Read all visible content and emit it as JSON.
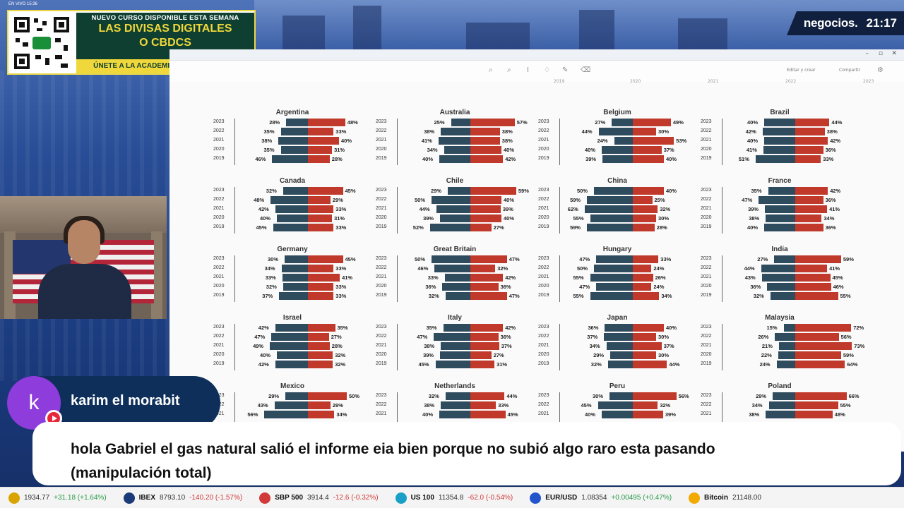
{
  "overlay": {
    "live_label": "EN VIVO 15:36",
    "brand": "negocios.",
    "clock": "21:17",
    "promo": {
      "line1": "NUEVO CURSO DISPONIBLE ESTA SEMANA",
      "line2": "LAS DIVISAS DIGITALES",
      "line3": "O CBDCS",
      "cta": "ÚNETE A LA ACADEMIA DE NEGOCIOS TV"
    }
  },
  "screen": {
    "toolbar": {
      "share": "Editar y crear",
      "export": "Compartir"
    },
    "year_headers": [
      "2019",
      "2020",
      "2021",
      "2022",
      "2023"
    ]
  },
  "chart_data": {
    "type": "bar",
    "subtype": "diverging",
    "colors": {
      "left": "#2f4b5e",
      "right": "#c0392b"
    },
    "years": [
      "2023",
      "2022",
      "2021",
      "2020",
      "2019"
    ],
    "panels": [
      {
        "country": "Argentina",
        "left": [
          "28%",
          "35%",
          "38%",
          "35%",
          "46%"
        ],
        "right": [
          "48%",
          "33%",
          "40%",
          "31%",
          "28%"
        ]
      },
      {
        "country": "Australia",
        "left": [
          "25%",
          "38%",
          "41%",
          "34%",
          "40%"
        ],
        "right": [
          "57%",
          "38%",
          "38%",
          "40%",
          "42%"
        ]
      },
      {
        "country": "Belgium",
        "left": [
          "27%",
          "44%",
          "24%",
          "40%",
          "39%"
        ],
        "right": [
          "49%",
          "30%",
          "53%",
          "37%",
          "40%"
        ]
      },
      {
        "country": "Brazil",
        "left": [
          "40%",
          "42%",
          "40%",
          "41%",
          "51%"
        ],
        "right": [
          "44%",
          "38%",
          "42%",
          "36%",
          "33%"
        ]
      },
      {
        "country": "Canada",
        "left": [
          "32%",
          "48%",
          "42%",
          "40%",
          "45%"
        ],
        "right": [
          "45%",
          "29%",
          "33%",
          "31%",
          "33%"
        ]
      },
      {
        "country": "Chile",
        "left": [
          "29%",
          "50%",
          "44%",
          "39%",
          "52%"
        ],
        "right": [
          "59%",
          "40%",
          "39%",
          "40%",
          "27%"
        ]
      },
      {
        "country": "China",
        "left": [
          "50%",
          "59%",
          "62%",
          "55%",
          "59%"
        ],
        "right": [
          "40%",
          "25%",
          "32%",
          "30%",
          "28%"
        ]
      },
      {
        "country": "France",
        "left": [
          "35%",
          "47%",
          "39%",
          "38%",
          "40%"
        ],
        "right": [
          "42%",
          "36%",
          "41%",
          "34%",
          "36%"
        ]
      },
      {
        "country": "Germany",
        "left": [
          "30%",
          "34%",
          "33%",
          "32%",
          "37%"
        ],
        "right": [
          "45%",
          "33%",
          "41%",
          "33%",
          "33%"
        ]
      },
      {
        "country": "Great Britain",
        "left": [
          "50%",
          "46%",
          "33%",
          "36%",
          "32%"
        ],
        "right": [
          "47%",
          "32%",
          "42%",
          "36%",
          "47%"
        ]
      },
      {
        "country": "Hungary",
        "left": [
          "47%",
          "50%",
          "55%",
          "47%",
          "55%"
        ],
        "right": [
          "33%",
          "24%",
          "26%",
          "24%",
          "34%"
        ]
      },
      {
        "country": "India",
        "left": [
          "27%",
          "44%",
          "43%",
          "36%",
          "32%"
        ],
        "right": [
          "59%",
          "41%",
          "45%",
          "46%",
          "55%"
        ]
      },
      {
        "country": "Israel",
        "left": [
          "42%",
          "47%",
          "49%",
          "40%",
          "42%"
        ],
        "right": [
          "35%",
          "27%",
          "28%",
          "32%",
          "32%"
        ]
      },
      {
        "country": "Italy",
        "left": [
          "35%",
          "47%",
          "38%",
          "39%",
          "45%"
        ],
        "right": [
          "42%",
          "36%",
          "37%",
          "27%",
          "31%"
        ]
      },
      {
        "country": "Japan",
        "left": [
          "36%",
          "37%",
          "34%",
          "29%",
          "32%"
        ],
        "right": [
          "40%",
          "30%",
          "37%",
          "30%",
          "44%"
        ]
      },
      {
        "country": "Malaysia",
        "left": [
          "15%",
          "26%",
          "21%",
          "22%",
          "24%"
        ],
        "right": [
          "72%",
          "56%",
          "73%",
          "59%",
          "64%"
        ]
      },
      {
        "country": "Mexico",
        "left": [
          "29%",
          "43%",
          "56%"
        ],
        "right": [
          "50%",
          "29%",
          "34%"
        ]
      },
      {
        "country": "Netherlands",
        "left": [
          "32%",
          "38%",
          "40%"
        ],
        "right": [
          "44%",
          "33%",
          "45%"
        ]
      },
      {
        "country": "Peru",
        "left": [
          "30%",
          "45%",
          "40%"
        ],
        "right": [
          "56%",
          "32%",
          "39%"
        ]
      },
      {
        "country": "Poland",
        "left": [
          "29%",
          "34%",
          "38%"
        ],
        "right": [
          "66%",
          "55%",
          "48%"
        ]
      }
    ]
  },
  "chat": {
    "avatar_letter": "k",
    "username": "karim el morabit",
    "message_line1": "hola Gabriel el gas natural salió el informe eia bien porque no subió algo raro esta pasando",
    "message_line2": "(manipulación total)"
  },
  "ticker": [
    {
      "name": "",
      "value": "1934.77",
      "change": "+31.18 (+1.64%)",
      "color": "#d9a400"
    },
    {
      "name": "IBEX",
      "value": "8793.10",
      "change": "-140.20 (-1.57%)",
      "color": "#1b3a78"
    },
    {
      "name": "SBP 500",
      "value": "3914.4",
      "change": "-12.6 (-0.32%)",
      "color": "#d23a3a"
    },
    {
      "name": "US 100",
      "value": "11354.8",
      "change": "-62.0 (-0.54%)",
      "color": "#1aa0c7"
    },
    {
      "name": "EUR/USD",
      "value": "1.08354",
      "change": "+0.00495 (+0.47%)",
      "color": "#2255cc"
    },
    {
      "name": "Bitcoin",
      "value": "21148.00",
      "change": "",
      "color": "#f2a900"
    }
  ]
}
